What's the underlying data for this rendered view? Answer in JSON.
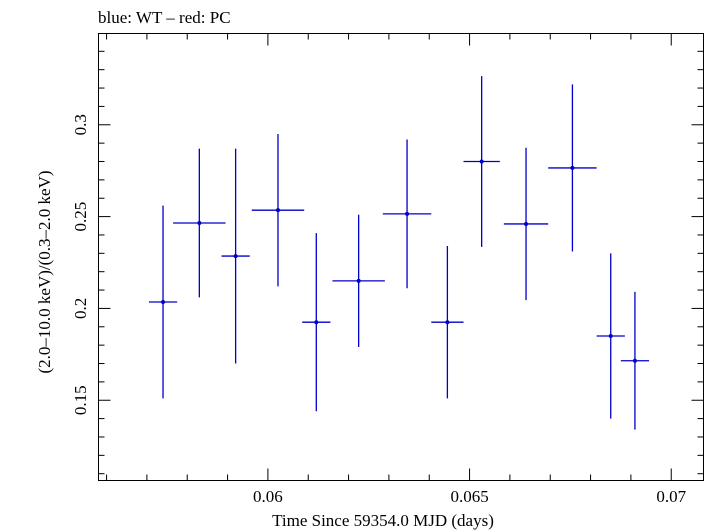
{
  "chart_data": {
    "type": "scatter",
    "title": "blue: WT – red: PC",
    "xlabel": "Time Since 59354.0 MJD (days)",
    "ylabel": "(2.0–10.0 keV)/(0.3–2.0 keV)",
    "xlim": [
      0.0558,
      0.0708
    ],
    "ylim": [
      0.1063,
      0.3497
    ],
    "xticks": [
      0.06,
      0.065,
      0.07
    ],
    "xtick_labels": [
      "0.06",
      "0.065",
      "0.07"
    ],
    "xminor_step": 0.001,
    "yticks": [
      0.15,
      0.2,
      0.25,
      0.3
    ],
    "ytick_labels": [
      "0.15",
      "0.2",
      "0.25",
      "0.3"
    ],
    "yminor_step": 0.01,
    "grid": false,
    "series": [
      {
        "color": "#0000cc",
        "points": [
          {
            "x": 0.0574,
            "xerr": 0.00035,
            "y": 0.2035,
            "yerr": 0.0525
          },
          {
            "x": 0.0583,
            "xerr": 0.00065,
            "y": 0.2465,
            "yerr": 0.0405
          },
          {
            "x": 0.0592,
            "xerr": 0.00035,
            "y": 0.2285,
            "yerr": 0.0585
          },
          {
            "x": 0.06025,
            "xerr": 0.00065,
            "y": 0.2535,
            "yerr": 0.0415
          },
          {
            "x": 0.0612,
            "xerr": 0.00035,
            "y": 0.1925,
            "yerr": 0.0485
          },
          {
            "x": 0.06225,
            "xerr": 0.00065,
            "y": 0.215,
            "yerr": 0.036
          },
          {
            "x": 0.06345,
            "xerr": 0.0006,
            "y": 0.2515,
            "yerr": 0.0405
          },
          {
            "x": 0.06445,
            "xerr": 0.0004,
            "y": 0.1925,
            "yerr": 0.0415
          },
          {
            "x": 0.0653,
            "xerr": 0.00045,
            "y": 0.28,
            "yerr": 0.0465
          },
          {
            "x": 0.0664,
            "xerr": 0.00055,
            "y": 0.246,
            "yerr": 0.0415
          },
          {
            "x": 0.06755,
            "xerr": 0.0006,
            "y": 0.2765,
            "yerr": 0.0455
          },
          {
            "x": 0.0685,
            "xerr": 0.00035,
            "y": 0.185,
            "yerr": 0.045
          },
          {
            "x": 0.0691,
            "xerr": 0.00035,
            "y": 0.1715,
            "yerr": 0.0375
          }
        ]
      }
    ]
  }
}
